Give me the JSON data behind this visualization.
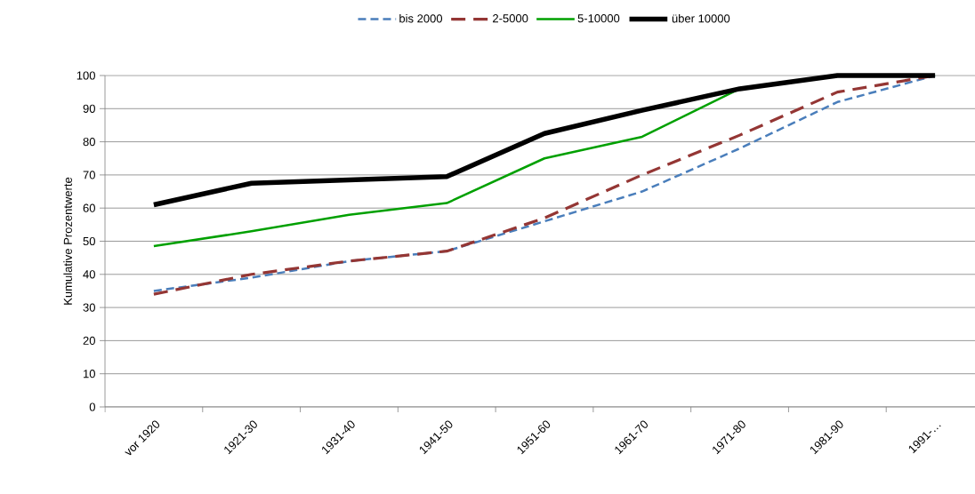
{
  "chart_data": {
    "type": "line",
    "ylabel": "Kumulative Prozentwerte",
    "categories": [
      "vor 1920",
      "1921-30",
      "1931-40",
      "1941-50",
      "1951-60",
      "1961-70",
      "1971-80",
      "1981-90",
      "1991-…"
    ],
    "series": [
      {
        "name": "bis 2000",
        "color": "#4a7ebb",
        "line_style": "dashed",
        "values": [
          35,
          39,
          44,
          47,
          56,
          65,
          78,
          92,
          100
        ]
      },
      {
        "name": "2-5000",
        "color": "#943634",
        "line_style": "dashed",
        "values": [
          34,
          40,
          44,
          47,
          57,
          70,
          82,
          95,
          100
        ]
      },
      {
        "name": "5-10000",
        "color": "#00a000",
        "line_style": "solid",
        "values": [
          48.5,
          53,
          58,
          61.5,
          75,
          81.5,
          96,
          100,
          100
        ]
      },
      {
        "name": "über 10000",
        "color": "#000000",
        "line_style": "solid",
        "values": [
          61,
          67.5,
          68.5,
          69.5,
          82.5,
          89.5,
          96,
          100,
          100
        ]
      }
    ],
    "ylim": [
      0,
      100
    ],
    "yticks": [
      0,
      10,
      20,
      30,
      40,
      50,
      60,
      70,
      80,
      90,
      100
    ],
    "grid": "y",
    "legend": "top",
    "marker": "none"
  }
}
